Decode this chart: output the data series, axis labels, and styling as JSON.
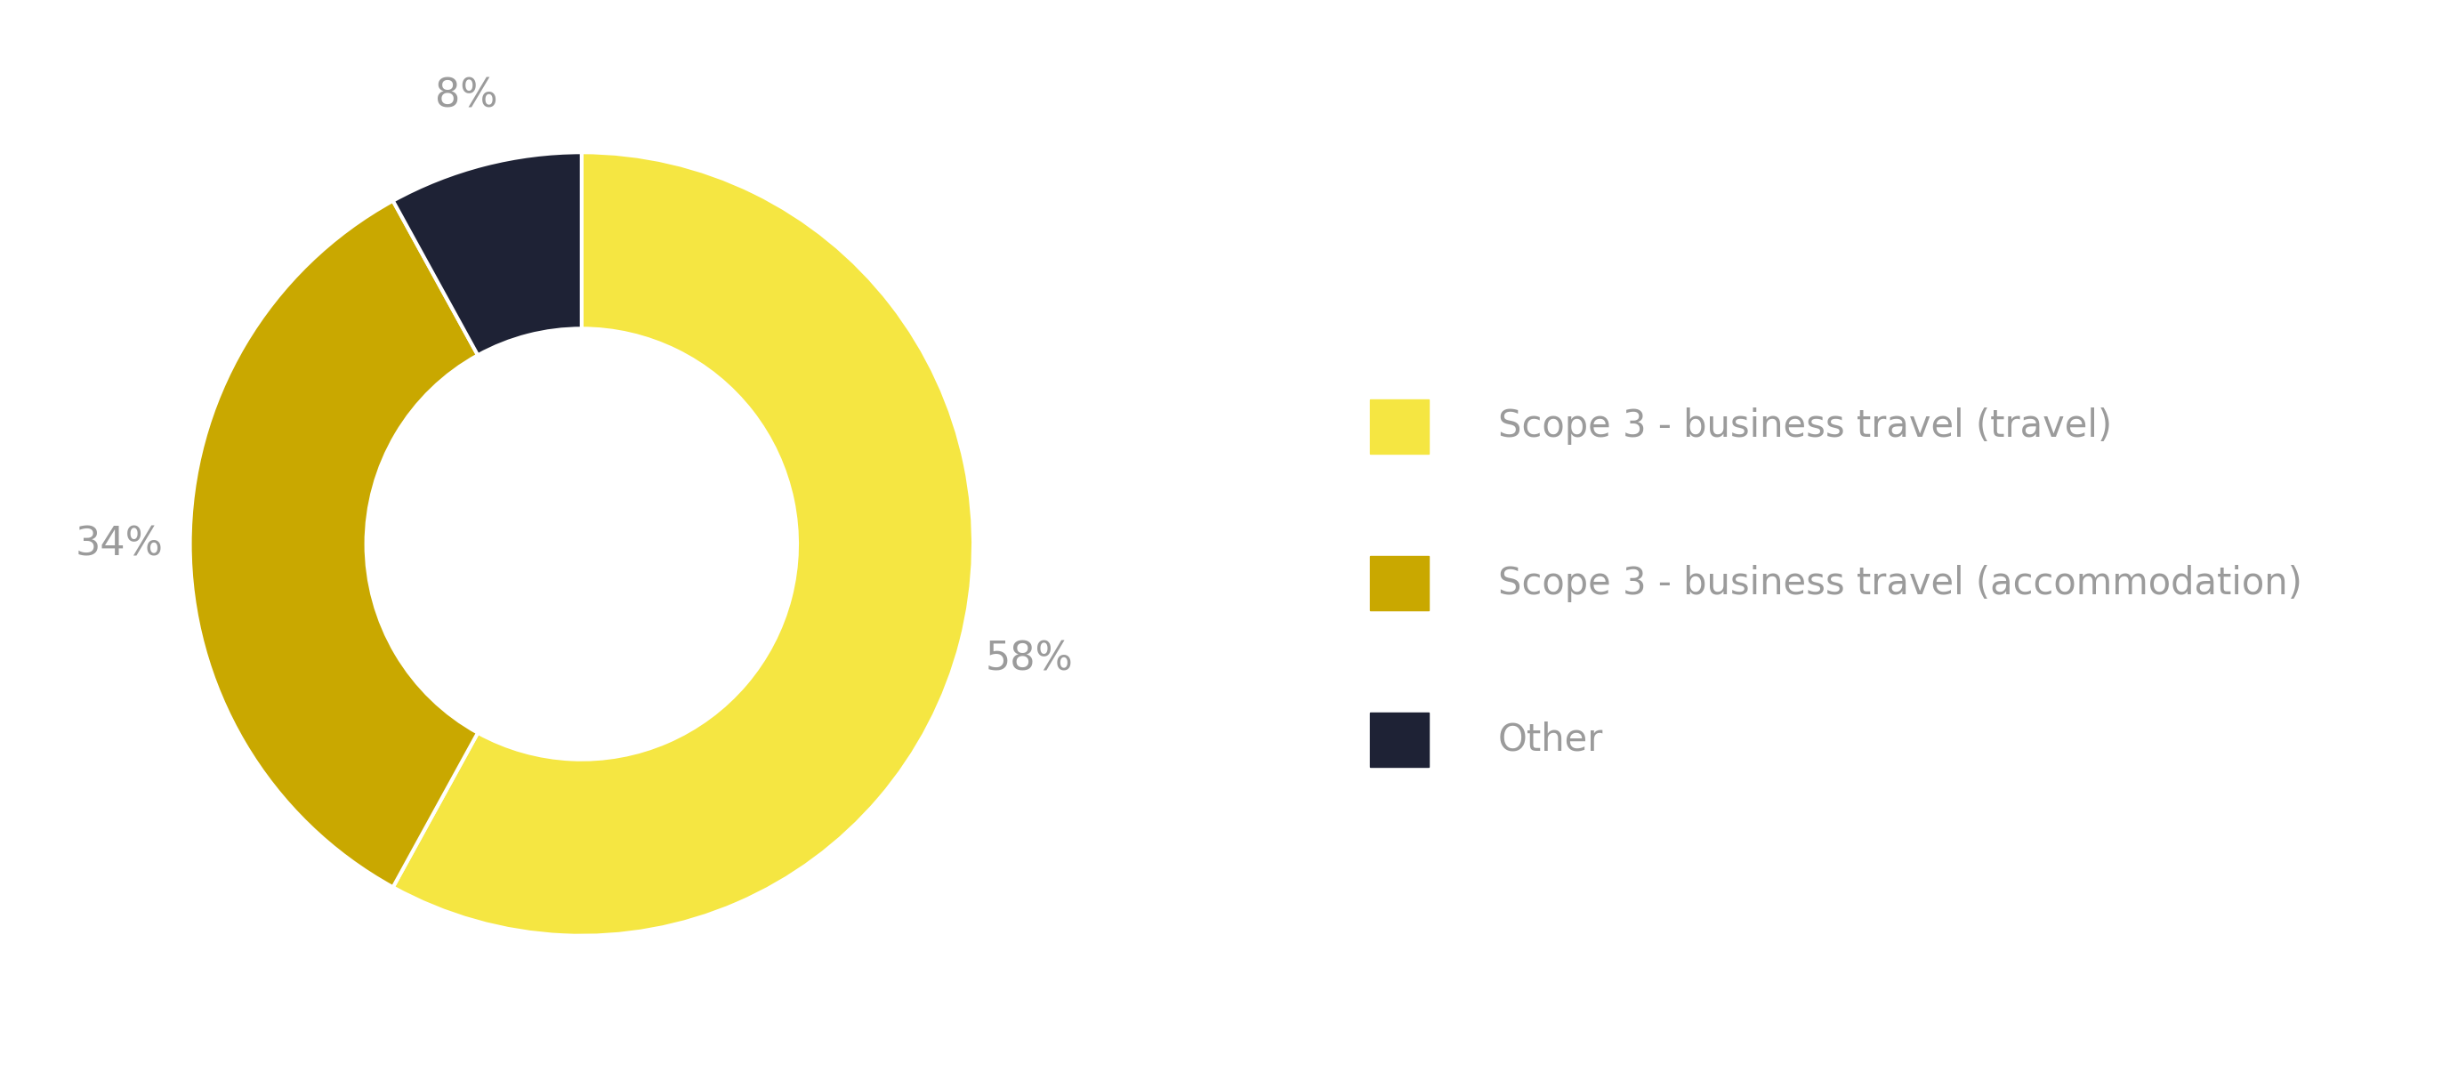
{
  "slices": [
    58,
    34,
    8
  ],
  "labels": [
    "58%",
    "34%",
    "8%"
  ],
  "colors": [
    "#F5E642",
    "#C9A800",
    "#1E2235"
  ],
  "legend_labels": [
    "Scope 3 - business travel (travel)",
    "Scope 3 - business travel (accommodation)",
    "Other"
  ],
  "legend_colors": [
    "#F5E642",
    "#C9A800",
    "#1E2235"
  ],
  "background_color": "#FFFFFF",
  "label_color": "#9B9B9B",
  "label_fontsize": 32,
  "legend_fontsize": 30,
  "donut_width": 0.45,
  "startangle": 90
}
